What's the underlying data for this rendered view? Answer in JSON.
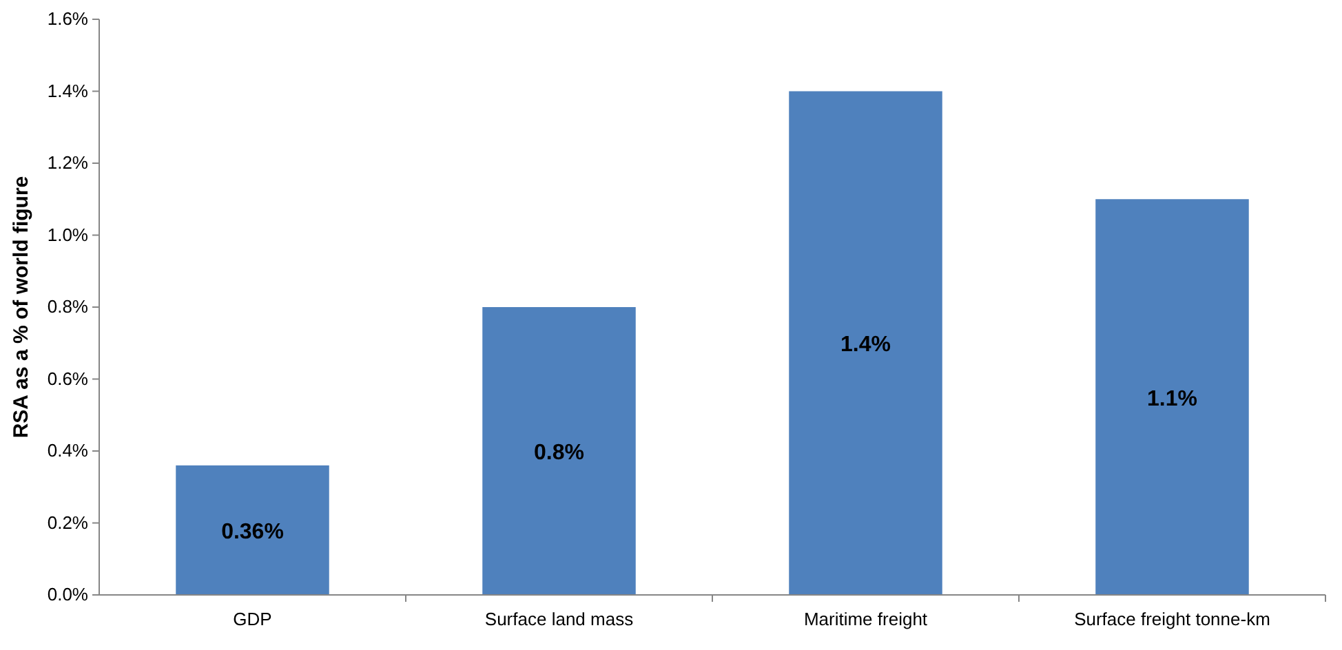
{
  "chart_data": {
    "type": "bar",
    "ylabel": "RSA as a % of world figure",
    "categories": [
      "GDP",
      "Surface land mass",
      "Maritime freight",
      "Surface freight tonne-km"
    ],
    "values": [
      0.36,
      0.8,
      1.4,
      1.1
    ],
    "color": "#4f81bd",
    "value_labels": [
      "0.36%",
      "0.8%",
      "1.4%",
      "1.1%"
    ],
    "ylim": [
      0,
      1.6
    ],
    "yticks": [
      {
        "value": 0,
        "label": "0.0%"
      },
      {
        "value": 0.2,
        "label": "0.2%"
      },
      {
        "value": 0.4,
        "label": "0.4%"
      },
      {
        "value": 0.6,
        "label": "0.6%"
      },
      {
        "value": 0.8,
        "label": "0.8%"
      },
      {
        "value": 1.0,
        "label": "1.0%"
      },
      {
        "value": 1.2,
        "label": "1.2%"
      },
      {
        "value": 1.4,
        "label": "1.4%"
      },
      {
        "value": 1.6,
        "label": "1.6%"
      }
    ],
    "grid": false
  }
}
